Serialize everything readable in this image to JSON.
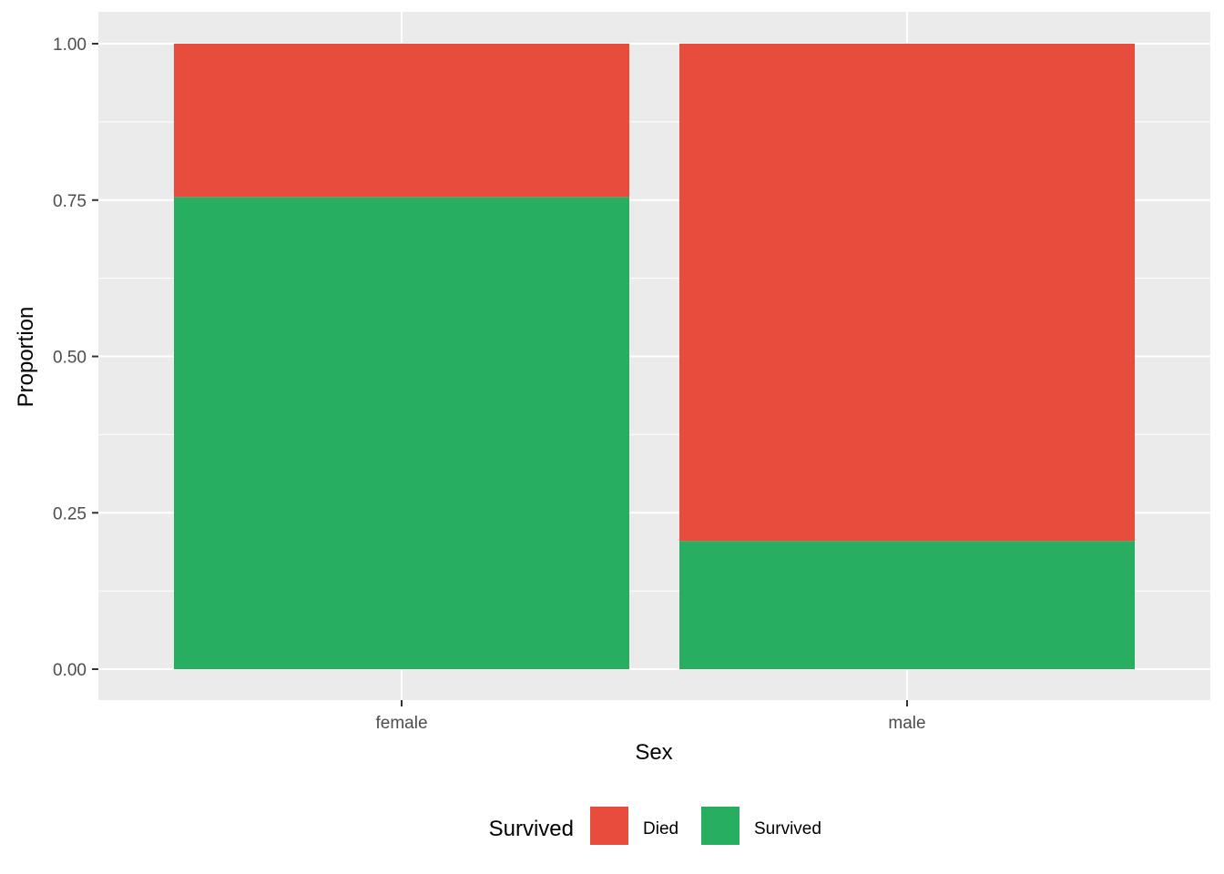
{
  "chart_data": {
    "type": "bar",
    "stacked": true,
    "categories": [
      "female",
      "male"
    ],
    "series": [
      {
        "name": "Survived",
        "values": [
          0.755,
          0.205
        ],
        "color": "#27AE60"
      },
      {
        "name": "Died",
        "values": [
          0.245,
          0.795
        ],
        "color": "#E74C3C"
      }
    ],
    "xlabel": "Sex",
    "ylabel": "Proportion",
    "ylim": [
      0,
      1
    ],
    "yticks": [
      0.0,
      0.25,
      0.5,
      0.75,
      1.0
    ],
    "ytick_labels": [
      "0.00",
      "0.25",
      "0.50",
      "0.75",
      "1.00"
    ],
    "grid": true,
    "panel_background": "#EBEBEB",
    "legend": {
      "title": "Survived",
      "position": "bottom",
      "items": [
        {
          "label": "Died",
          "color": "#E74C3C"
        },
        {
          "label": "Survived",
          "color": "#27AE60"
        }
      ]
    }
  }
}
